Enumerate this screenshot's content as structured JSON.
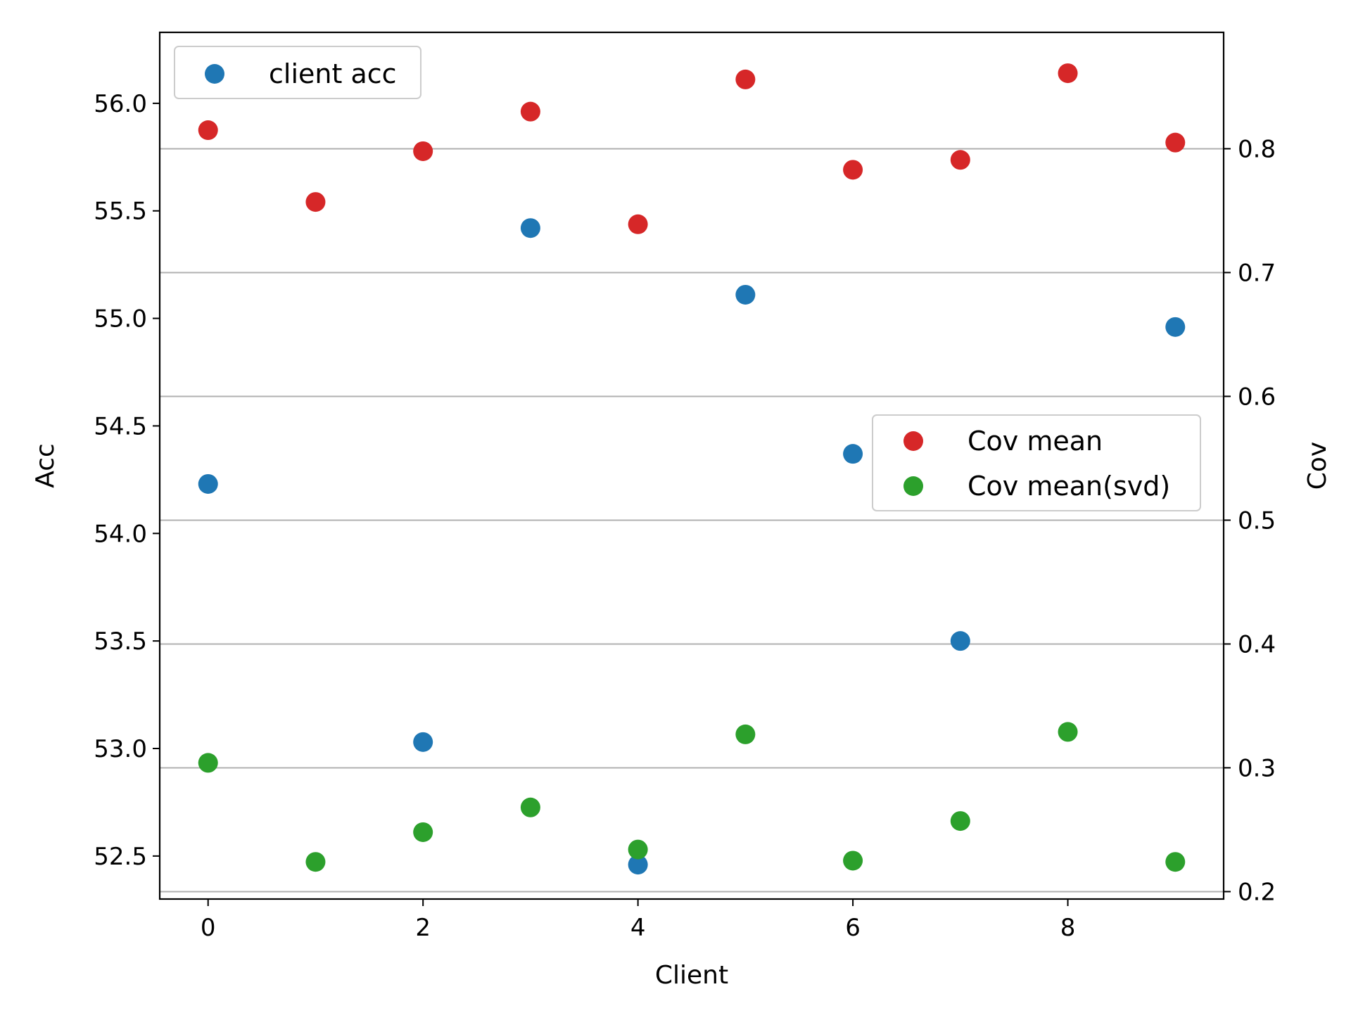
{
  "chart_data": {
    "type": "scatter",
    "xlabel": "Client",
    "ylabel_left": "Acc",
    "ylabel_right": "Cov",
    "x": [
      0,
      1,
      2,
      3,
      4,
      5,
      6,
      7,
      8,
      9
    ],
    "xlim": [
      -0.45,
      9.45
    ],
    "ylim_left": [
      52.3,
      56.33
    ],
    "ylim_right": [
      0.194,
      0.894
    ],
    "xticks": [
      0,
      2,
      4,
      6,
      8
    ],
    "yticks_left": [
      52.5,
      53.0,
      53.5,
      54.0,
      54.5,
      55.0,
      55.5,
      56.0
    ],
    "yticks_right": [
      0.2,
      0.3,
      0.4,
      0.5,
      0.6,
      0.7,
      0.8
    ],
    "grid": "horizontal lines at right-axis ticks",
    "series": [
      {
        "name": "client acc",
        "axis": "left",
        "color": "#1f77b4",
        "x": [
          0,
          2,
          3,
          4,
          5,
          6,
          7,
          9
        ],
        "values": [
          54.23,
          53.03,
          55.42,
          52.46,
          55.11,
          54.37,
          53.5,
          54.96
        ]
      },
      {
        "name": "Cov mean",
        "axis": "right",
        "color": "#d62728",
        "x": [
          0,
          1,
          2,
          3,
          4,
          5,
          6,
          7,
          8,
          9
        ],
        "values": [
          0.815,
          0.757,
          0.798,
          0.83,
          0.739,
          0.856,
          0.783,
          0.791,
          0.861,
          0.805
        ]
      },
      {
        "name": "Cov mean(svd)",
        "axis": "right",
        "color": "#2ca02c",
        "x": [
          0,
          1,
          2,
          3,
          4,
          5,
          6,
          7,
          8,
          9
        ],
        "values": [
          0.304,
          0.224,
          0.248,
          0.268,
          0.234,
          0.327,
          0.225,
          0.257,
          0.329,
          0.224
        ]
      }
    ],
    "legends": [
      {
        "placement": "upper-left",
        "entries": [
          "client acc"
        ]
      },
      {
        "placement": "center-right",
        "entries": [
          "Cov mean",
          "Cov mean(svd)"
        ]
      }
    ]
  }
}
